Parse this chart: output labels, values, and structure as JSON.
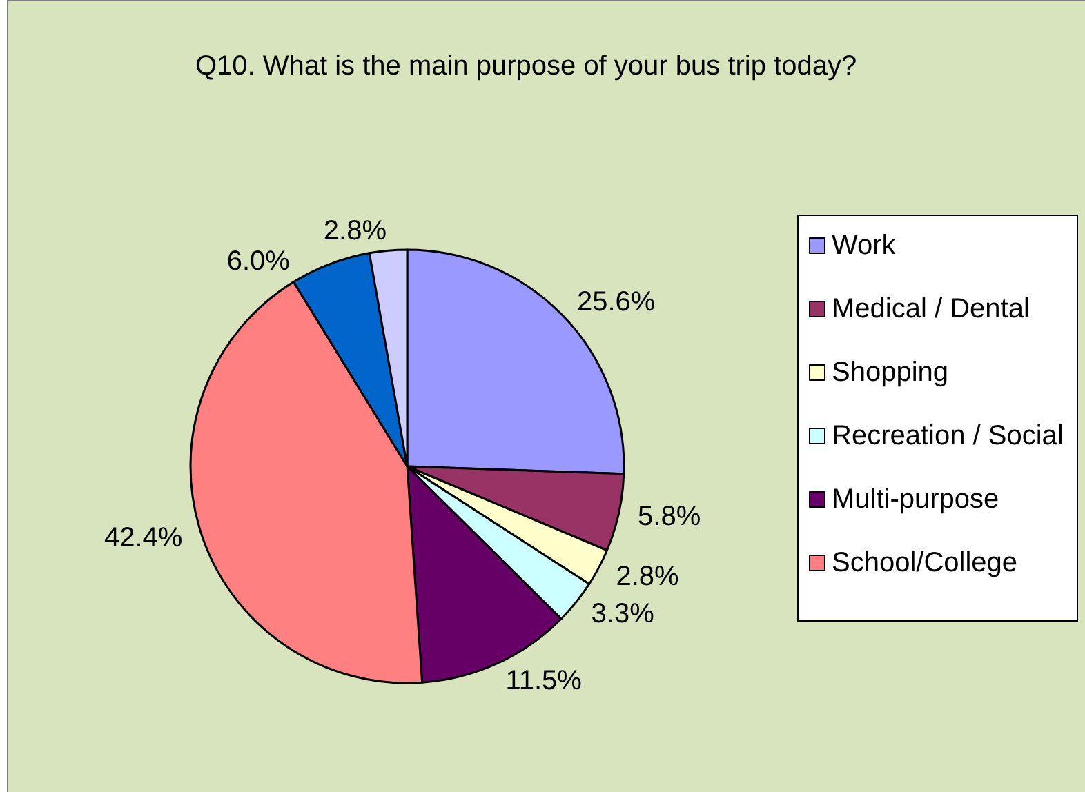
{
  "chart_data": {
    "type": "pie",
    "title": "Q10. What is the main purpose of your bus trip today?",
    "categories": [
      "Work",
      "Medical / Dental",
      "Shopping",
      "Recreation / Social",
      "Multi-purpose",
      "School/College",
      null,
      null
    ],
    "values": [
      25.6,
      5.8,
      2.8,
      3.3,
      11.5,
      42.4,
      6.0,
      2.8
    ],
    "value_labels": [
      "25.6%",
      "5.8%",
      "2.8%",
      "3.3%",
      "11.5%",
      "42.4%",
      "6.0%",
      "2.8%"
    ],
    "colors": [
      "#9999ff",
      "#993366",
      "#ffffcc",
      "#ccffff",
      "#660066",
      "#ff8080",
      "#0066cc",
      "#ccccff"
    ],
    "legend": "right"
  }
}
